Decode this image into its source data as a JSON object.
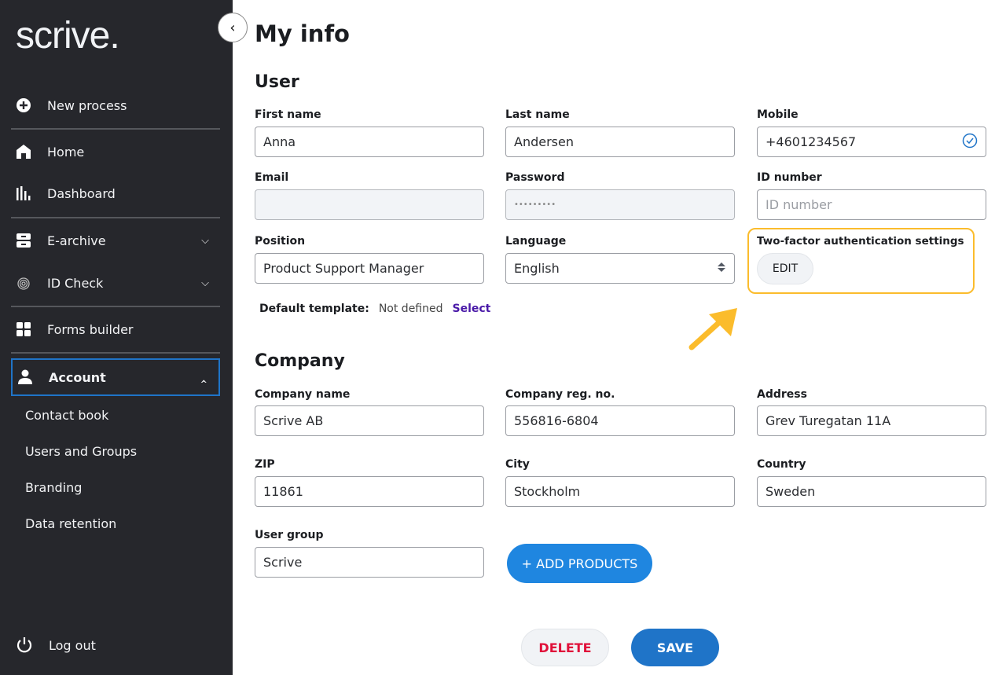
{
  "sidebar": {
    "logo": "scrive.",
    "items": [
      {
        "label": "New process",
        "icon": "plus-circle-icon"
      },
      {
        "label": "Home",
        "icon": "home-icon"
      },
      {
        "label": "Dashboard",
        "icon": "bar-chart-icon"
      },
      {
        "label": "E-archive",
        "icon": "archive-icon"
      },
      {
        "label": "ID Check",
        "icon": "fingerprint-icon"
      },
      {
        "label": "Forms builder",
        "icon": "grid-icon"
      },
      {
        "label": "Account",
        "icon": "person-icon"
      }
    ],
    "account_sub": [
      "Contact book",
      "Users and Groups",
      "Branding",
      "Data retention"
    ],
    "logout": "Log out"
  },
  "page": {
    "title": "My info"
  },
  "user": {
    "heading": "User",
    "first_name": {
      "label": "First name",
      "value": "Anna"
    },
    "last_name": {
      "label": "Last name",
      "value": "Andersen"
    },
    "mobile": {
      "label": "Mobile",
      "value": "+4601234567"
    },
    "email": {
      "label": "Email",
      "value": ""
    },
    "password": {
      "label": "Password",
      "value": "•••••••••"
    },
    "id_number": {
      "label": "ID number",
      "placeholder": "ID number"
    },
    "position": {
      "label": "Position",
      "value": "Product Support Manager"
    },
    "language": {
      "label": "Language",
      "value": "English"
    },
    "two_factor": {
      "label": "Two-factor authentication settings",
      "button": "EDIT"
    },
    "default_template": {
      "label": "Default template:",
      "value": "Not defined",
      "link": "Select"
    }
  },
  "company": {
    "heading": "Company",
    "name": {
      "label": "Company name",
      "value": "Scrive AB"
    },
    "reg_no": {
      "label": "Company reg. no.",
      "value": "556816-6804"
    },
    "address": {
      "label": "Address",
      "value": "Grev Turegatan 11A"
    },
    "zip": {
      "label": "ZIP",
      "value": "11861"
    },
    "city": {
      "label": "City",
      "value": "Stockholm"
    },
    "country": {
      "label": "Country",
      "value": "Sweden"
    },
    "user_group": {
      "label": "User group",
      "value": "Scrive"
    },
    "add_products": "+ ADD PRODUCTS"
  },
  "actions": {
    "delete": "DELETE",
    "save": "SAVE"
  },
  "colors": {
    "sidebar": "#26272c",
    "accent": "#1f74c8",
    "highlight": "#fbbc2c",
    "danger": "#e0103a"
  }
}
